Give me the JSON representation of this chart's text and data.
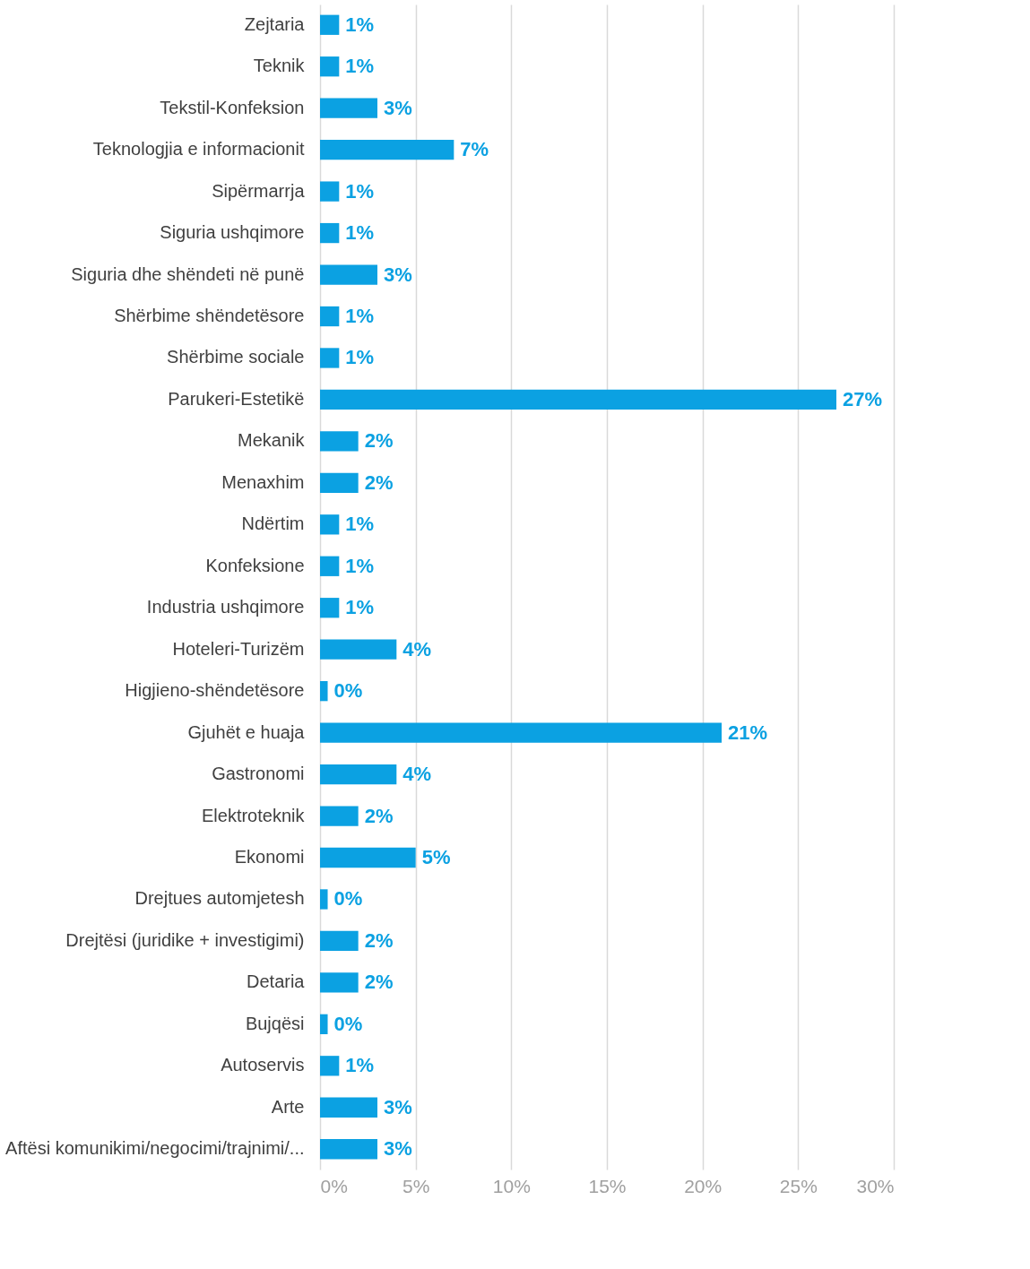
{
  "chart_data": {
    "type": "bar",
    "orientation": "horizontal",
    "categories": [
      "Zejtaria",
      "Teknik",
      "Tekstil-Konfeksion",
      "Teknologjia e informacionit",
      "Sipërmarrja",
      "Siguria ushqimore",
      "Siguria dhe shëndeti në punë",
      "Shërbime shëndetësore",
      "Shërbime sociale",
      "Parukeri-Estetikë",
      "Mekanik",
      "Menaxhim",
      "Ndërtim",
      "Konfeksione",
      "Industria ushqimore",
      "Hoteleri-Turizëm",
      "Higjieno-shëndetësore",
      "Gjuhët e huaja",
      "Gastronomi",
      "Elektroteknik",
      "Ekonomi",
      "Drejtues automjetesh",
      "Drejtësi (juridike + investigimi)",
      "Detaria",
      "Bujqësi",
      "Autoservis",
      "Arte",
      "Aftësi komunikimi/negocimi/trajnimi/..."
    ],
    "values": [
      1,
      1,
      3,
      7,
      1,
      1,
      3,
      1,
      1,
      27,
      2,
      2,
      1,
      1,
      1,
      4,
      0.4,
      21,
      4,
      2,
      5,
      0.4,
      2,
      2,
      0.4,
      1,
      3,
      3
    ],
    "value_labels": [
      "1%",
      "1%",
      "3%",
      "7%",
      "1%",
      "1%",
      "3%",
      "1%",
      "1%",
      "27%",
      "2%",
      "2%",
      "1%",
      "1%",
      "1%",
      "4%",
      "0%",
      "21%",
      "4%",
      "2%",
      "5%",
      "0%",
      "2%",
      "2%",
      "0%",
      "1%",
      "3%",
      "3%"
    ],
    "color": "#0ba1e2",
    "xlim": [
      0,
      30
    ],
    "xticks": [
      {
        "value": 0,
        "label": "0%"
      },
      {
        "value": 5,
        "label": "5%"
      },
      {
        "value": 10,
        "label": "10%"
      },
      {
        "value": 15,
        "label": "15%"
      },
      {
        "value": 20,
        "label": "20%"
      },
      {
        "value": 25,
        "label": "25%"
      },
      {
        "value": 30,
        "label": "30%"
      }
    ],
    "grid": "x"
  }
}
